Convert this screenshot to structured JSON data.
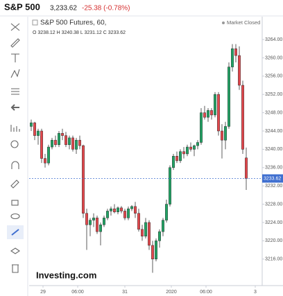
{
  "header": {
    "title": "S&P 500",
    "price": "3,233.62",
    "change": "-25.38 (-0.78%)"
  },
  "chart_data": {
    "type": "candlestick",
    "title": "S&P 500 Futures, 60,",
    "ohlc_legend": "O 3238.12 H 3240.38 L 3231.12 C 3233.62",
    "status": "Market Closed",
    "watermark": "Investing.com",
    "up_color": "#21a465",
    "down_color": "#e5484d",
    "price_line_color": "#3f6fd0",
    "open": [
      3245,
      3245.8,
      3243,
      3244,
      3238,
      3237,
      3240.5,
      3242,
      3241,
      3243.5,
      3243,
      3241,
      3242.5,
      3240,
      3242,
      3240.8,
      3226,
      3223.5,
      3224.5,
      3225,
      3222,
      3223.5,
      3225,
      3226.5,
      3227,
      3226.3,
      3227.2,
      3226.5,
      3225,
      3227,
      3227.5,
      3226,
      3222.5,
      3221,
      3224,
      3219,
      3216,
      3220,
      3222,
      3224.5,
      3228,
      3236,
      3238.5,
      3237.5,
      3239.5,
      3239,
      3240.5,
      3240,
      3240.8,
      3241.5,
      3248,
      3247,
      3248.5,
      3247.5,
      3252,
      3244,
      3242,
      3245,
      3258,
      3262,
      3260.5,
      3254,
      3238.12
    ],
    "high": [
      3246.5,
      3246,
      3244.5,
      3244.5,
      3239,
      3241,
      3242.5,
      3243,
      3244,
      3244.5,
      3243.8,
      3243,
      3243,
      3242.5,
      3243,
      3241,
      3227,
      3225,
      3226,
      3225.5,
      3224,
      3225.5,
      3227,
      3227.5,
      3228,
      3227.5,
      3227.6,
      3227,
      3227.5,
      3227.8,
      3228.5,
      3227,
      3223.5,
      3225,
      3224.5,
      3220,
      3220.5,
      3222.5,
      3225,
      3229,
      3236.5,
      3239,
      3239.5,
      3240,
      3240.5,
      3241,
      3241.5,
      3241,
      3242,
      3249,
      3249.5,
      3249,
      3249,
      3252.5,
      3252.5,
      3245.5,
      3246,
      3259,
      3263,
      3263,
      3262.5,
      3255,
      3240.38
    ],
    "low": [
      3244,
      3242,
      3241,
      3237,
      3236,
      3236.5,
      3240,
      3240.5,
      3240.5,
      3242,
      3240.5,
      3240,
      3239.5,
      3239,
      3240,
      3225,
      3218,
      3221,
      3223,
      3221.5,
      3219,
      3223,
      3224.5,
      3225.5,
      3226,
      3225.8,
      3226,
      3224.5,
      3224.5,
      3226.5,
      3225,
      3222,
      3220,
      3220.5,
      3218,
      3213,
      3215.5,
      3218.5,
      3221,
      3224,
      3227.5,
      3235.5,
      3237,
      3237,
      3238,
      3238.5,
      3239.5,
      3238.5,
      3240,
      3241,
      3246.5,
      3246,
      3246.5,
      3247,
      3243,
      3238,
      3240,
      3244.5,
      3257,
      3259,
      3253,
      3239,
      3231.12
    ],
    "close": [
      3245.8,
      3243,
      3244,
      3238,
      3237,
      3240.5,
      3242,
      3241,
      3243.5,
      3243,
      3241,
      3242.5,
      3240,
      3242,
      3240.8,
      3226,
      3223.5,
      3224.5,
      3225,
      3222,
      3223.5,
      3225,
      3226.5,
      3227,
      3226.3,
      3227.2,
      3226.5,
      3225,
      3227,
      3227.5,
      3226,
      3222.5,
      3221,
      3224,
      3219,
      3216,
      3220,
      3222,
      3224.5,
      3228,
      3236,
      3238.5,
      3237.5,
      3239.5,
      3239,
      3240.5,
      3240,
      3240.8,
      3241.5,
      3248,
      3247,
      3248.5,
      3247.5,
      3252,
      3244,
      3242,
      3245,
      3258,
      3262,
      3260.5,
      3254,
      3240,
      3233.62
    ],
    "xlim": [
      -0.6,
      66.6
    ],
    "xticks": [
      {
        "value": 3.4,
        "label": "29"
      },
      {
        "value": 13.4,
        "label": "06:00"
      },
      {
        "value": 27,
        "label": "31"
      },
      {
        "value": 40.4,
        "label": "2020"
      },
      {
        "value": 50.4,
        "label": "06:00"
      },
      {
        "value": 64.6,
        "label": "3"
      }
    ],
    "ylim": [
      3210.2,
      3268.4
    ],
    "yticks": [
      {
        "value": 3216,
        "label": "3216.00"
      },
      {
        "value": 3220,
        "label": "3220.00"
      },
      {
        "value": 3224,
        "label": "3224.00"
      },
      {
        "value": 3228,
        "label": "3228.00"
      },
      {
        "value": 3232,
        "label": "3232.00"
      },
      {
        "value": 3236,
        "label": "3236.00"
      },
      {
        "value": 3240,
        "label": "3240.00"
      },
      {
        "value": 3244,
        "label": "3244.00"
      },
      {
        "value": 3248,
        "label": "3248.00"
      },
      {
        "value": 3252,
        "label": "3252.00"
      },
      {
        "value": 3256,
        "label": "3256.00"
      },
      {
        "value": 3260,
        "label": "3260.00"
      },
      {
        "value": 3264,
        "label": "3264.00"
      }
    ]
  }
}
